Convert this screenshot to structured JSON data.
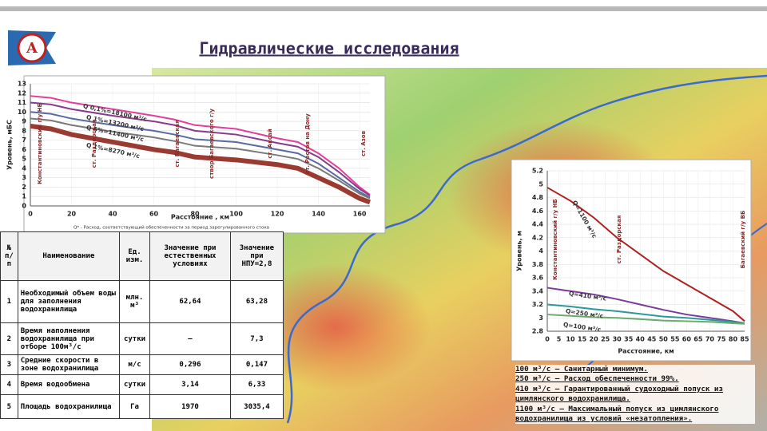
{
  "title": "Гидравлические исследования",
  "chart_data": [
    {
      "type": "line",
      "x_label": "Расстояние , км",
      "y_label": "Уровень, мБС",
      "footnote": "Q* - Расход, соответствующий обеспеченности за период зарегулированного стока",
      "stations": [
        "Константиновский г/у НБ",
        "ст. Раздорская",
        "ст. Багаевская",
        "створ Багаевского г/у",
        "ст. Аксай",
        "ст. Ростов на Дону",
        "ст. Азов"
      ],
      "annotations": [
        "Q 0,1%=18100 м³/с",
        "Q 1%=13200 м³/с",
        "Q 5%=11400 м³/с",
        "Q 1%=8270 м³/с"
      ],
      "x": [
        0,
        10,
        20,
        40,
        60,
        70,
        80,
        100,
        120,
        130,
        140,
        150,
        160,
        165
      ],
      "series": [
        {
          "color": "#e0409a",
          "values": [
            11.7,
            11.5,
            11,
            10.3,
            9.6,
            9.2,
            8.6,
            8.2,
            7.2,
            6.8,
            5.6,
            4,
            2,
            1.2
          ]
        },
        {
          "color": "#8a3a8a",
          "values": [
            11,
            10.8,
            10.3,
            9.6,
            9,
            8.6,
            8,
            7.6,
            6.7,
            6.3,
            5.2,
            3.6,
            1.8,
            1.1
          ]
        },
        {
          "color": "#5a6aa0",
          "values": [
            10,
            9.8,
            9.3,
            8.6,
            8,
            7.6,
            7.1,
            6.8,
            6,
            5.6,
            4.5,
            3,
            1.5,
            0.9
          ]
        },
        {
          "color": "#7a7a7a",
          "values": [
            9.3,
            9.1,
            8.6,
            7.9,
            7.3,
            6.9,
            6.4,
            6.1,
            5.4,
            5,
            4,
            2.7,
            1.3,
            0.8
          ]
        },
        {
          "color": "#9a3a30",
          "values": [
            8.5,
            8.2,
            7.6,
            6.8,
            6,
            5.7,
            5.2,
            4.9,
            4.4,
            4,
            3,
            2,
            0.8,
            0.4
          ]
        }
      ],
      "xlim": [
        0,
        165
      ],
      "xticks": [
        0,
        20,
        40,
        60,
        80,
        100,
        120,
        140,
        160
      ],
      "ylim": [
        0,
        13
      ],
      "yticks": [
        0,
        1,
        2,
        3,
        4,
        5,
        6,
        7,
        8,
        9,
        10,
        11,
        12,
        13
      ],
      "grid": true
    },
    {
      "type": "line",
      "x_label": "Расстояние, км",
      "y_label": "Уровень, м",
      "stations": [
        "Константиновский г/у НБ",
        "ст. Раздорская",
        "Багаевский г/у ВБ"
      ],
      "annotations": [
        "Q=1100 м³/с",
        "Q=410 м³/с",
        "Q=250 м³/с",
        "Q=100 м³/с"
      ],
      "x": [
        0,
        10,
        20,
        30,
        40,
        50,
        60,
        70,
        80,
        85
      ],
      "series": [
        {
          "color": "#b02020",
          "values": [
            4.95,
            4.75,
            4.5,
            4.2,
            3.95,
            3.7,
            3.5,
            3.3,
            3.1,
            2.95
          ]
        },
        {
          "color": "#7a3a9a",
          "values": [
            3.45,
            3.4,
            3.35,
            3.28,
            3.2,
            3.12,
            3.05,
            3,
            2.95,
            2.92
          ]
        },
        {
          "color": "#2a9a9a",
          "values": [
            3.2,
            3.17,
            3.13,
            3.1,
            3.06,
            3.02,
            3,
            2.97,
            2.94,
            2.92
          ]
        },
        {
          "color": "#6aaa6a",
          "values": [
            3.05,
            3.03,
            3.01,
            3,
            2.98,
            2.96,
            2.95,
            2.94,
            2.92,
            2.91
          ]
        }
      ],
      "xlim": [
        0,
        85
      ],
      "xticks": [
        0,
        5,
        10,
        15,
        20,
        25,
        30,
        35,
        40,
        45,
        50,
        55,
        60,
        65,
        70,
        75,
        80,
        85
      ],
      "ylim": [
        2.8,
        5.2
      ],
      "yticks": [
        2.8,
        3,
        3.2,
        3.4,
        3.6,
        3.8,
        4,
        4.2,
        4.4,
        4.6,
        4.8,
        5,
        5.2
      ],
      "grid": true
    }
  ],
  "table": {
    "header": [
      "№ п/п",
      "Наименование",
      "Ед. изм.",
      "Значение при естественных условиях",
      "Значение при НПУ=2,8"
    ],
    "rows": [
      [
        "1",
        "Необходимый объем воды для заполнения водохранилища",
        "млн. м³",
        "62,64",
        "63,28"
      ],
      [
        "2",
        "Время наполнения водохранилища при отборе 100м³/с",
        "сутки",
        "—",
        "7,3"
      ],
      [
        "3",
        "Средние скорости в зоне водохранилища",
        "м/с",
        "0,296",
        "0,147"
      ],
      [
        "4",
        "Время водообмена",
        "сутки",
        "3,14",
        "6,33"
      ],
      [
        "5",
        "Площадь водохранилища",
        "Га",
        "1970",
        "3035,4"
      ]
    ]
  },
  "notes": [
    "100 м³/с – Санитарный минимум.",
    "250 м³/с – Расход обеспеченности 99%.",
    "410 м³/с – Гарантированный судоходный попуск из цимлянского водохранилища.",
    "1100 м³/с – Максимальный попуск из цимлянского водохранилища из условий «незатопления»."
  ]
}
